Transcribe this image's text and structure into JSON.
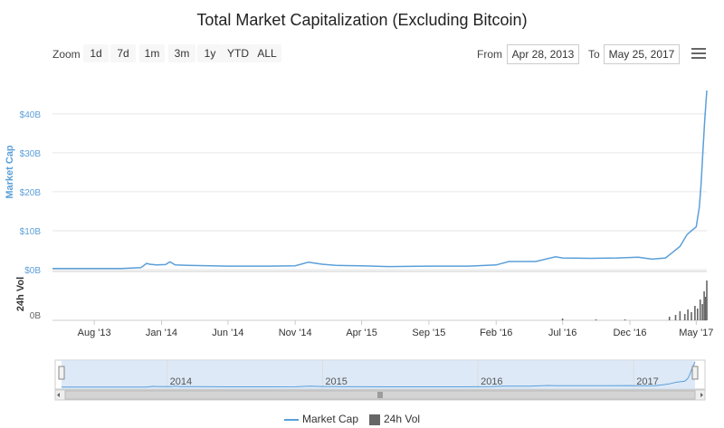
{
  "chart_data": {
    "type": "line",
    "title": "Total Market Capitalization (Excluding Bitcoin)",
    "main": {
      "ylabel": "Market Cap",
      "yticks": [
        "$0B",
        "$10B",
        "$20B",
        "$30B",
        "$40B"
      ],
      "ylim": [
        0,
        45
      ],
      "unit": "billion USD"
    },
    "volume": {
      "ylabel": "24h Vol",
      "yticks": [
        "0B"
      ]
    },
    "xticks": [
      "Aug '13",
      "Jan '14",
      "Jun '14",
      "Nov '14",
      "Apr '15",
      "Sep '15",
      "Feb '16",
      "Jul '16",
      "Dec '16",
      "May '17"
    ],
    "navigator_ticks": [
      "2014",
      "2015",
      "2016",
      "2017"
    ],
    "legend": [
      "Market Cap",
      "24h Vol"
    ],
    "series": [
      {
        "name": "Market Cap",
        "color": "#5b9fd9",
        "x": [
          "2013-04-28",
          "2013-06-01",
          "2013-08-01",
          "2013-10-01",
          "2013-11-15",
          "2013-11-28",
          "2013-12-05",
          "2013-12-20",
          "2014-01-10",
          "2014-01-20",
          "2014-02-01",
          "2014-03-01",
          "2014-06-01",
          "2014-09-01",
          "2014-11-01",
          "2014-12-01",
          "2015-01-01",
          "2015-02-01",
          "2015-04-01",
          "2015-06-01",
          "2015-09-01",
          "2015-12-01",
          "2016-02-01",
          "2016-03-01",
          "2016-05-01",
          "2016-06-15",
          "2016-07-01",
          "2016-09-01",
          "2016-11-01",
          "2016-12-20",
          "2017-01-20",
          "2017-02-20",
          "2017-03-10",
          "2017-03-25",
          "2017-04-10",
          "2017-04-20",
          "2017-05-01",
          "2017-05-08",
          "2017-05-12",
          "2017-05-16",
          "2017-05-20",
          "2017-05-25"
        ],
        "values": [
          0.3,
          0.3,
          0.3,
          0.3,
          0.5,
          1.6,
          1.4,
          1.2,
          1.3,
          2.0,
          1.2,
          1.1,
          0.9,
          0.9,
          1.0,
          1.9,
          1.4,
          1.1,
          1.0,
          0.8,
          0.9,
          0.9,
          1.2,
          2.1,
          2.1,
          3.3,
          3.0,
          2.9,
          3.0,
          3.2,
          2.7,
          3.0,
          4.6,
          6.0,
          9.0,
          10.0,
          11.0,
          16.0,
          22.0,
          30.0,
          38.0,
          46.0
        ]
      },
      {
        "name": "24h Vol",
        "color": "#666666",
        "x": [
          "2016-07-01",
          "2016-09-15",
          "2016-11-20",
          "2017-03-01",
          "2017-03-15",
          "2017-03-25",
          "2017-04-05",
          "2017-04-12",
          "2017-04-20",
          "2017-04-28",
          "2017-05-04",
          "2017-05-10",
          "2017-05-15",
          "2017-05-19",
          "2017-05-22",
          "2017-05-25"
        ],
        "values": [
          0.2,
          0.1,
          0.1,
          0.4,
          0.6,
          1.0,
          0.7,
          1.2,
          0.9,
          1.6,
          1.3,
          2.3,
          1.8,
          3.2,
          2.6,
          4.4
        ]
      }
    ]
  },
  "toolbar": {
    "zoom_label": "Zoom",
    "zoom_buttons": [
      "1d",
      "7d",
      "1m",
      "3m",
      "1y",
      "YTD",
      "ALL"
    ],
    "from_label": "From",
    "from_value": "Apr 28, 2013",
    "to_label": "To",
    "to_value": "May 25, 2017"
  },
  "icons": {
    "menu": "hamburger-menu-icon",
    "scroll_left": "arrow-left-icon",
    "scroll_right": "arrow-right-icon",
    "scroll_grip": "grip-icon"
  }
}
